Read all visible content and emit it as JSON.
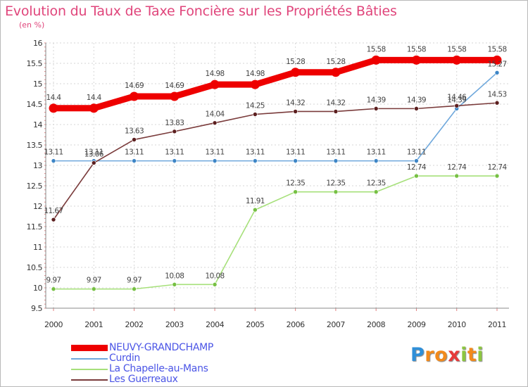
{
  "title": "Evolution du Taux de Taxe Foncière sur les Propriétés Bâties",
  "unit_label": "(en %)",
  "brand": {
    "letters": [
      "P",
      "r",
      "o",
      "x",
      "i",
      "t",
      "i"
    ],
    "colors": [
      "#2f8fd8",
      "#f28a1c",
      "#f28a1c",
      "#e63b3b",
      "#8cc63f",
      "#f28a1c",
      "#8cc63f"
    ]
  },
  "chart_data": {
    "type": "line",
    "title": "Evolution du Taux de Taxe Foncière sur les Propriétés Bâties",
    "ylabel": "(en %)",
    "xlabel": "",
    "categories": [
      "2000",
      "2001",
      "2002",
      "2003",
      "2004",
      "2005",
      "2006",
      "2007",
      "2008",
      "2009",
      "2010",
      "2011"
    ],
    "ylim": [
      9.5,
      16
    ],
    "yticks": [
      9.5,
      10,
      10.5,
      11,
      11.5,
      12,
      12.5,
      13,
      13.5,
      14,
      14.5,
      15,
      15.5,
      16
    ],
    "ytick_labels": [
      "9.5",
      "10",
      "10.5",
      "11",
      "11.5",
      "12",
      "12.5",
      "13",
      "13.5",
      "14",
      "14.5",
      "15",
      "15.5",
      "16"
    ],
    "grid": true,
    "legend_position": "bottom-left",
    "series": [
      {
        "name": "NEUVY-GRANDCHAMP",
        "color": "#ee0000",
        "marker": "#ee0000",
        "emphasis": true,
        "values": [
          14.4,
          14.4,
          14.69,
          14.69,
          14.98,
          14.98,
          15.28,
          15.28,
          15.58,
          15.58,
          15.58,
          15.58
        ],
        "labels": [
          "14.4",
          "14.4",
          "14.69",
          "14.69",
          "14.98",
          "14.98",
          "15.28",
          "15.28",
          "15.58",
          "15.58",
          "15.58",
          "15.58"
        ]
      },
      {
        "name": "Curdin",
        "color": "#6fa8dc",
        "marker": "#3d85c6",
        "emphasis": false,
        "values": [
          13.11,
          13.11,
          13.11,
          13.11,
          13.11,
          13.11,
          13.11,
          13.11,
          13.11,
          13.11,
          14.39,
          15.27
        ],
        "labels": [
          "13.11",
          "13.11",
          "13.11",
          "13.11",
          "13.11",
          "13.11",
          "13.11",
          "13.11",
          "13.11",
          "13.11",
          "14.39",
          "15.27"
        ]
      },
      {
        "name": "La Chapelle-au-Mans",
        "color": "#a6e07a",
        "marker": "#76c043",
        "emphasis": false,
        "values": [
          9.97,
          9.97,
          9.97,
          10.08,
          10.08,
          11.91,
          12.35,
          12.35,
          12.35,
          12.74,
          12.74,
          12.74
        ],
        "labels": [
          "9.97",
          "9.97",
          "9.97",
          "10.08",
          "10.08",
          "11.91",
          "12.35",
          "12.35",
          "12.35",
          "12.74",
          "12.74",
          "12.74"
        ]
      },
      {
        "name": "Les Guerreaux",
        "color": "#7a3b3b",
        "marker": "#5c1f1f",
        "emphasis": false,
        "values": [
          11.67,
          13.06,
          13.63,
          13.83,
          14.04,
          14.25,
          14.32,
          14.32,
          14.39,
          14.39,
          14.46,
          14.53
        ],
        "labels": [
          "11.67",
          "13.06",
          "13.63",
          "13.83",
          "14.04",
          "14.25",
          "14.32",
          "14.32",
          "14.39",
          "14.39",
          "14.46",
          "14.53"
        ]
      }
    ]
  }
}
